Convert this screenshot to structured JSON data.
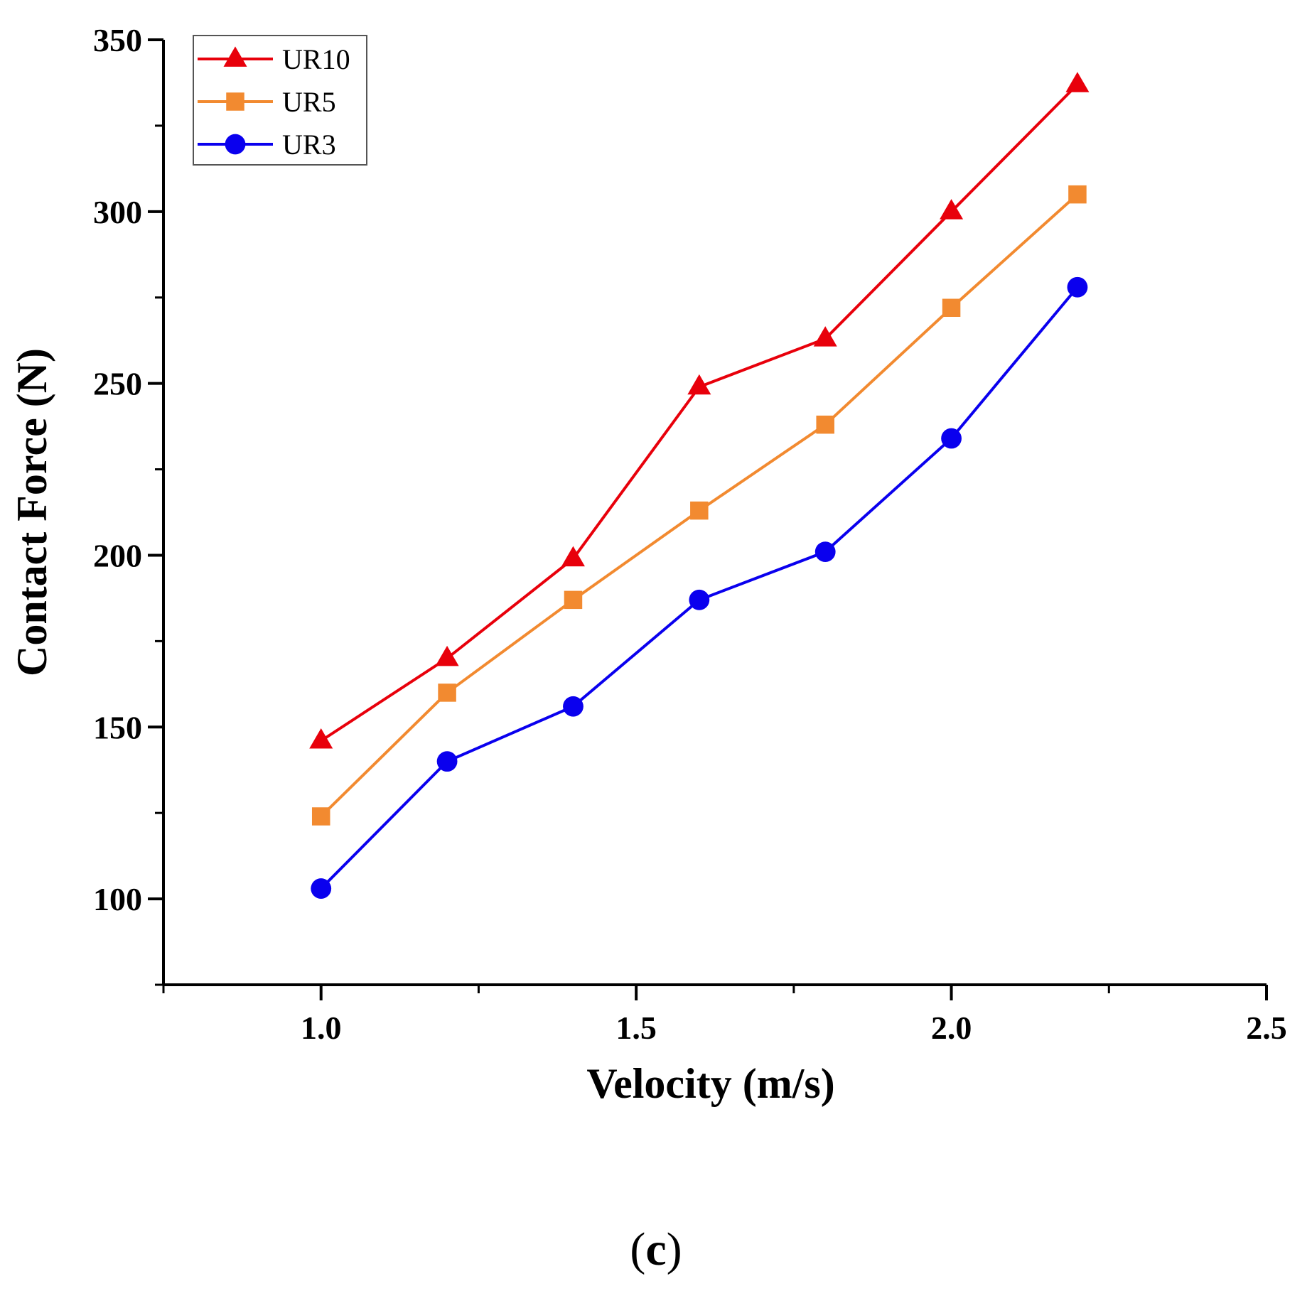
{
  "chart_data": {
    "type": "line",
    "title": "",
    "xlabel": "Velocity (m/s)",
    "ylabel": "Contact Force (N)",
    "xlim": [
      0.75,
      2.5
    ],
    "ylim": [
      75,
      350
    ],
    "x_ticks": [
      1.0,
      1.5,
      2.0,
      2.5
    ],
    "x_tick_labels": [
      "1.0",
      "1.5",
      "2.0",
      "2.5"
    ],
    "x_minor_ticks": [
      0.75,
      1.25,
      1.75,
      2.25
    ],
    "y_ticks": [
      100,
      150,
      200,
      250,
      300,
      350
    ],
    "y_tick_labels": [
      "100",
      "150",
      "200",
      "250",
      "300",
      "350"
    ],
    "y_minor_ticks": [
      75,
      125,
      175,
      225,
      275,
      325
    ],
    "grid": false,
    "legend_position": "top-left",
    "x": [
      1.0,
      1.2,
      1.4,
      1.6,
      1.8,
      2.0,
      2.2
    ],
    "series": [
      {
        "name": "UR10",
        "color": "#e8000b",
        "marker": "triangle",
        "values": [
          146,
          170,
          199,
          249,
          263,
          300,
          337
        ]
      },
      {
        "name": "UR5",
        "color": "#f28a30",
        "marker": "square",
        "values": [
          124,
          160,
          187,
          213,
          238,
          272,
          305
        ]
      },
      {
        "name": "UR3",
        "color": "#0a00ee",
        "marker": "circle",
        "values": [
          103,
          140,
          156,
          187,
          201,
          234,
          278
        ]
      }
    ]
  },
  "panel_label": {
    "open": "(",
    "letter": "c",
    "close": ")"
  }
}
